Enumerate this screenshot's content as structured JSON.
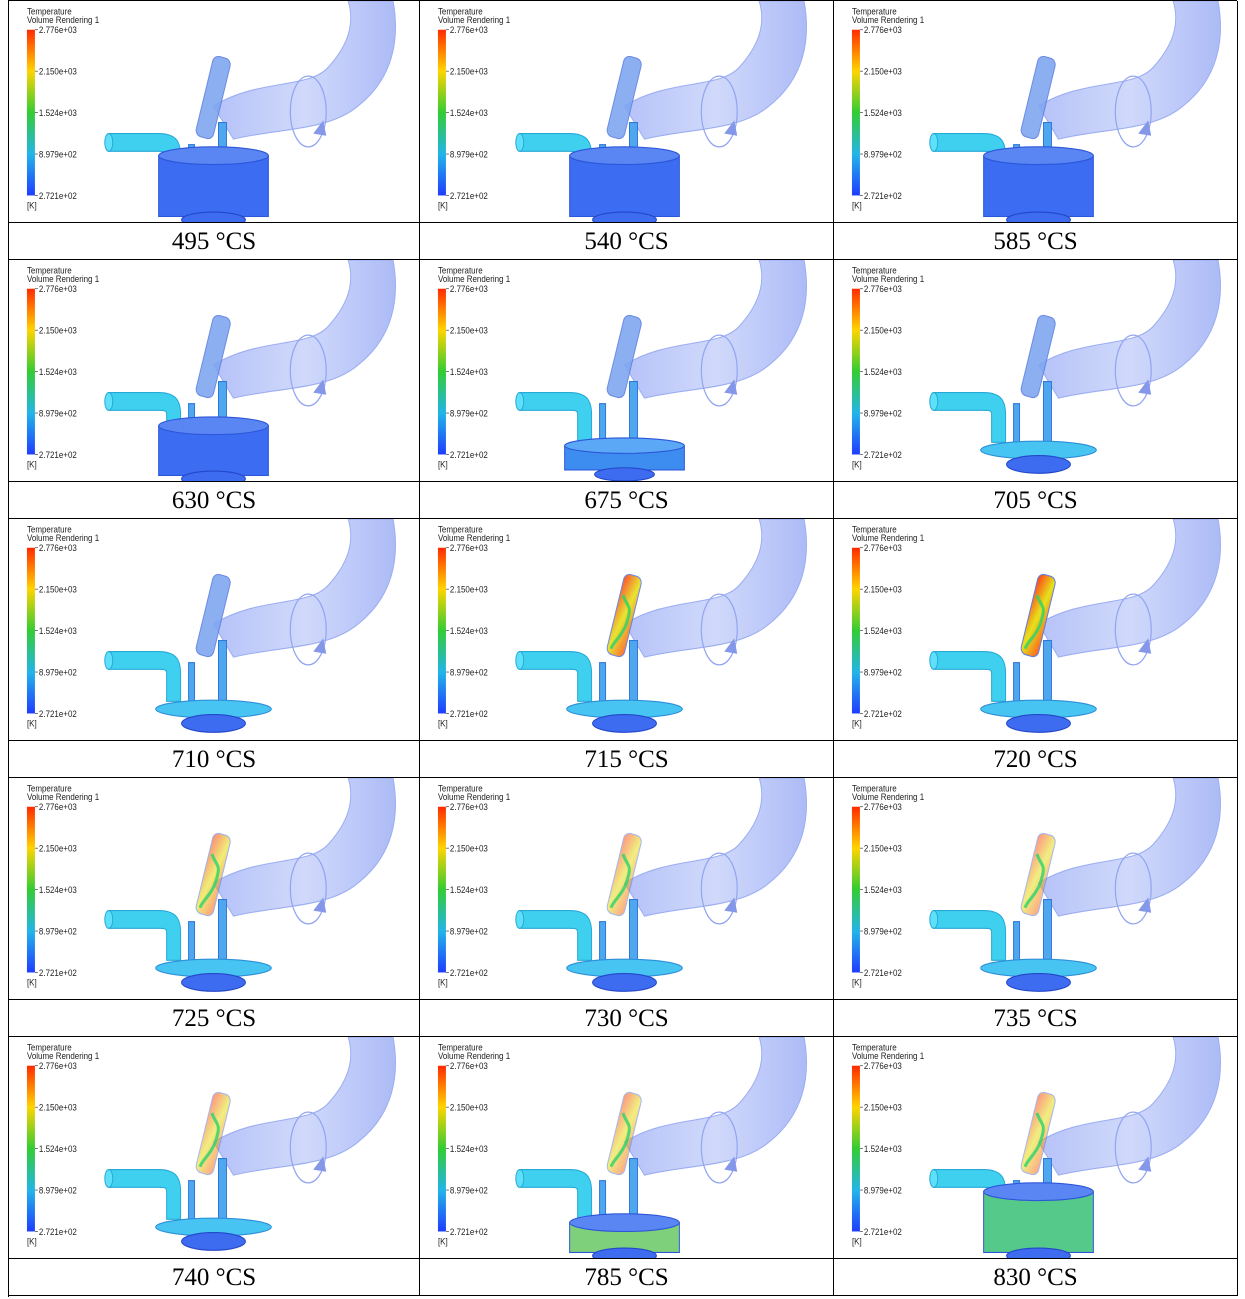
{
  "legend": {
    "title": "Temperature",
    "subtitle": "Volume Rendering 1",
    "ticks": [
      "2.776e+03",
      "2.150e+03",
      "1.524e+03",
      "8.979e+02",
      "2.721e+02"
    ],
    "unit": "[K]",
    "colormap": [
      "#ff2a00",
      "#ffd400",
      "#33cc33",
      "#22b5e8",
      "#1f3cff"
    ]
  },
  "panels": [
    {
      "caption": "495 °CS",
      "cylinder": "full",
      "hot": 0,
      "cyl_fill": "#3b6cf2"
    },
    {
      "caption": "540 °CS",
      "cylinder": "full",
      "hot": 0,
      "cyl_fill": "#3b6cf2"
    },
    {
      "caption": "585 °CS",
      "cylinder": "full",
      "hot": 0,
      "cyl_fill": "#3b6cf2"
    },
    {
      "caption": "630 °CS",
      "cylinder": "mid",
      "hot": 0,
      "cyl_fill": "#3b6cf2"
    },
    {
      "caption": "675 °CS",
      "cylinder": "low",
      "hot": 0,
      "cyl_fill": "#3d8df0"
    },
    {
      "caption": "705 °CS",
      "cylinder": "tdc",
      "hot": 0,
      "cyl_fill": "#3d8df0"
    },
    {
      "caption": "710 °CS",
      "cylinder": "tdc",
      "hot": 0,
      "cyl_fill": "#3d8df0"
    },
    {
      "caption": "715 °CS",
      "cylinder": "tdc",
      "hot": 0.9,
      "cyl_fill": "#3d8df0"
    },
    {
      "caption": "720 °CS",
      "cylinder": "tdc",
      "hot": 1.0,
      "cyl_fill": "#3d8df0"
    },
    {
      "caption": "725 °CS",
      "cylinder": "tdc",
      "hot": 0.6,
      "cyl_fill": "#3d8df0"
    },
    {
      "caption": "730 °CS",
      "cylinder": "tdc",
      "hot": 0.5,
      "cyl_fill": "#3d8df0"
    },
    {
      "caption": "735 °CS",
      "cylinder": "tdc",
      "hot": 0.45,
      "cyl_fill": "#3d8df0"
    },
    {
      "caption": "740 °CS",
      "cylinder": "tdc",
      "hot": 0.4,
      "cyl_fill": "#3d8df0"
    },
    {
      "caption": "785 °CS",
      "cylinder": "low2",
      "hot": 0.3,
      "cyl_fill": "#7fd07a"
    },
    {
      "caption": "830 °CS",
      "cylinder": "full",
      "hot": 0.25,
      "cyl_fill": "#55c98a"
    }
  ]
}
